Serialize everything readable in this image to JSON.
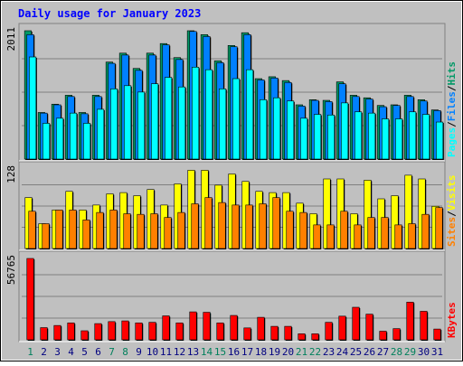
{
  "title": "Daily usage for January 2023",
  "colors": {
    "background": "#c0c0c0",
    "title": "#0000ff",
    "hits": "#009966",
    "files": "#0080ff",
    "pages": "#00ffff",
    "visits": "#ffff00",
    "sites": "#ff8000",
    "kbytes": "#ff0000",
    "weekend_day_label": "#00805c",
    "day_label": "#000080"
  },
  "chart_data": [
    {
      "type": "bar",
      "panel": "hits-files-pages",
      "categories": [
        "1",
        "2",
        "3",
        "4",
        "5",
        "6",
        "7",
        "8",
        "9",
        "10",
        "11",
        "12",
        "13",
        "14",
        "15",
        "16",
        "17",
        "18",
        "19",
        "20",
        "21",
        "22",
        "23",
        "24",
        "25",
        "26",
        "27",
        "28",
        "29",
        "30",
        "31"
      ],
      "ymax_label": "2011",
      "ylim": [
        0,
        2011
      ],
      "legend": [
        "Pages",
        "/",
        "Files",
        "/",
        "Hits"
      ],
      "series": [
        {
          "name": "Hits",
          "values": [
            2011,
            730,
            860,
            1000,
            730,
            1000,
            1520,
            1660,
            1420,
            1660,
            1810,
            1590,
            2011,
            1950,
            1540,
            1780,
            1980,
            1260,
            1290,
            1230,
            850,
            930,
            920,
            1210,
            1000,
            960,
            840,
            850,
            1000,
            930,
            770
          ]
        },
        {
          "name": "Files",
          "values": [
            1950,
            720,
            850,
            980,
            710,
            980,
            1500,
            1630,
            1390,
            1630,
            1790,
            1560,
            2000,
            1920,
            1510,
            1760,
            1950,
            1240,
            1270,
            1200,
            830,
            920,
            900,
            1180,
            980,
            940,
            820,
            840,
            980,
            910,
            760
          ]
        },
        {
          "name": "Pages",
          "values": [
            1600,
            560,
            640,
            720,
            560,
            780,
            1100,
            1150,
            1050,
            1180,
            1280,
            1130,
            1440,
            1400,
            1100,
            1260,
            1400,
            930,
            960,
            910,
            640,
            700,
            690,
            880,
            740,
            720,
            630,
            630,
            740,
            700,
            580
          ]
        }
      ]
    },
    {
      "type": "bar",
      "panel": "visits-sites",
      "categories": [
        "1",
        "2",
        "3",
        "4",
        "5",
        "6",
        "7",
        "8",
        "9",
        "10",
        "11",
        "12",
        "13",
        "14",
        "15",
        "16",
        "17",
        "18",
        "19",
        "20",
        "21",
        "22",
        "23",
        "24",
        "25",
        "26",
        "27",
        "28",
        "29",
        "30",
        "31"
      ],
      "ymax_label": "128",
      "ylim": [
        0,
        128
      ],
      "legend": [
        "Sites",
        "/",
        "Visits"
      ],
      "series": [
        {
          "name": "Visits",
          "values": [
            82,
            40,
            62,
            92,
            62,
            70,
            88,
            90,
            85,
            95,
            70,
            104,
            126,
            126,
            102,
            120,
            108,
            92,
            90,
            90,
            73,
            56,
            112,
            112,
            56,
            110,
            80,
            85,
            118,
            112,
            68
          ]
        },
        {
          "name": "Sites",
          "values": [
            60,
            40,
            62,
            62,
            46,
            58,
            62,
            56,
            55,
            56,
            50,
            58,
            72,
            82,
            74,
            70,
            70,
            72,
            82,
            60,
            58,
            38,
            38,
            60,
            38,
            50,
            50,
            38,
            40,
            55,
            66
          ]
        }
      ]
    },
    {
      "type": "bar",
      "panel": "kbytes",
      "categories": [
        "1",
        "2",
        "3",
        "4",
        "5",
        "6",
        "7",
        "8",
        "9",
        "10",
        "11",
        "12",
        "13",
        "14",
        "15",
        "16",
        "17",
        "18",
        "19",
        "20",
        "21",
        "22",
        "23",
        "24",
        "25",
        "26",
        "27",
        "28",
        "29",
        "30",
        "31"
      ],
      "ymax_label": "56765",
      "ylim": [
        0,
        56765
      ],
      "legend": [
        "KBytes"
      ],
      "series": [
        {
          "name": "KBytes",
          "values": [
            56765,
            8500,
            10000,
            11800,
            6300,
            11300,
            12700,
            13200,
            11800,
            12200,
            16700,
            11800,
            19500,
            19200,
            11800,
            17000,
            8300,
            15700,
            9400,
            9400,
            4200,
            4200,
            12200,
            16500,
            22700,
            17900,
            6000,
            7800,
            26300,
            19900,
            7500
          ]
        }
      ]
    }
  ],
  "x_labels": [
    "1",
    "2",
    "3",
    "4",
    "5",
    "6",
    "7",
    "8",
    "9",
    "10",
    "11",
    "12",
    "13",
    "14",
    "15",
    "16",
    "17",
    "18",
    "19",
    "20",
    "21",
    "22",
    "23",
    "24",
    "25",
    "26",
    "27",
    "28",
    "29",
    "30",
    "31"
  ],
  "weekend_days": [
    1,
    7,
    8,
    14,
    15,
    21,
    22,
    28,
    29
  ]
}
